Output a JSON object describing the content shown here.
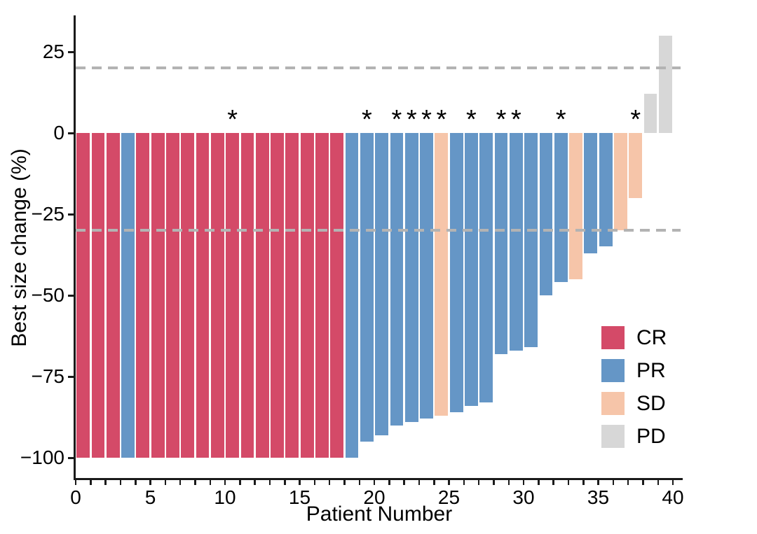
{
  "chart_data": {
    "type": "bar",
    "title": "",
    "xlabel": "Patient Number",
    "ylabel": "Best size change (%)",
    "xlim": [
      0,
      40.7
    ],
    "ylim": [
      -105,
      36
    ],
    "grid": "off",
    "legend_position": "inside-right",
    "x_tick_step": 1,
    "x_tick_label_values": [
      0,
      5,
      10,
      15,
      20,
      25,
      30,
      35,
      40
    ],
    "x_tick_labels": [
      "0",
      "5",
      "10",
      "15",
      "20",
      "25",
      "30",
      "35",
      "40"
    ],
    "y_tick_values": [
      25,
      0,
      -25,
      -50,
      -75,
      -100
    ],
    "y_tick_labels": [
      "25",
      "0",
      "−25",
      "−50",
      "−75",
      "−100"
    ],
    "reference_lines": [
      {
        "y": 20,
        "style": "dashed",
        "color": "#b3b3b3"
      },
      {
        "y": -30,
        "style": "dashed",
        "color": "#b3b3b3"
      }
    ],
    "response_colors": {
      "CR": "#d44a68",
      "PR": "#6596c6",
      "SD": "#f6c5a9",
      "PD": "#d7d7d7"
    },
    "legend": [
      {
        "label": "CR",
        "color": "#d44a68"
      },
      {
        "label": "PR",
        "color": "#6596c6"
      },
      {
        "label": "SD",
        "color": "#f6c5a9"
      },
      {
        "label": "PD",
        "color": "#d7d7d7"
      }
    ],
    "annotation_symbol": "*",
    "patients": [
      {
        "patient": 1,
        "value": -100,
        "response": "CR",
        "star": false
      },
      {
        "patient": 2,
        "value": -100,
        "response": "CR",
        "star": false
      },
      {
        "patient": 3,
        "value": -100,
        "response": "CR",
        "star": false
      },
      {
        "patient": 4,
        "value": -100,
        "response": "PR",
        "star": false
      },
      {
        "patient": 5,
        "value": -100,
        "response": "CR",
        "star": false
      },
      {
        "patient": 6,
        "value": -100,
        "response": "CR",
        "star": false
      },
      {
        "patient": 7,
        "value": -100,
        "response": "CR",
        "star": false
      },
      {
        "patient": 8,
        "value": -100,
        "response": "CR",
        "star": false
      },
      {
        "patient": 9,
        "value": -100,
        "response": "CR",
        "star": false
      },
      {
        "patient": 10,
        "value": -100,
        "response": "CR",
        "star": false
      },
      {
        "patient": 11,
        "value": -100,
        "response": "CR",
        "star": true
      },
      {
        "patient": 12,
        "value": -100,
        "response": "CR",
        "star": false
      },
      {
        "patient": 13,
        "value": -100,
        "response": "CR",
        "star": false
      },
      {
        "patient": 14,
        "value": -100,
        "response": "CR",
        "star": false
      },
      {
        "patient": 15,
        "value": -100,
        "response": "CR",
        "star": false
      },
      {
        "patient": 16,
        "value": -100,
        "response": "CR",
        "star": false
      },
      {
        "patient": 17,
        "value": -100,
        "response": "CR",
        "star": false
      },
      {
        "patient": 18,
        "value": -100,
        "response": "CR",
        "star": false
      },
      {
        "patient": 19,
        "value": -100,
        "response": "PR",
        "star": false
      },
      {
        "patient": 20,
        "value": -95,
        "response": "PR",
        "star": true
      },
      {
        "patient": 21,
        "value": -93,
        "response": "PR",
        "star": false
      },
      {
        "patient": 22,
        "value": -90,
        "response": "PR",
        "star": true
      },
      {
        "patient": 23,
        "value": -89,
        "response": "PR",
        "star": true
      },
      {
        "patient": 24,
        "value": -88,
        "response": "PR",
        "star": true
      },
      {
        "patient": 25,
        "value": -87,
        "response": "SD",
        "star": true
      },
      {
        "patient": 26,
        "value": -86,
        "response": "PR",
        "star": false
      },
      {
        "patient": 27,
        "value": -84,
        "response": "PR",
        "star": true
      },
      {
        "patient": 28,
        "value": -83,
        "response": "PR",
        "star": false
      },
      {
        "patient": 29,
        "value": -68,
        "response": "PR",
        "star": true
      },
      {
        "patient": 30,
        "value": -67,
        "response": "PR",
        "star": true
      },
      {
        "patient": 31,
        "value": -66,
        "response": "PR",
        "star": false
      },
      {
        "patient": 32,
        "value": -50,
        "response": "PR",
        "star": false
      },
      {
        "patient": 33,
        "value": -46,
        "response": "PR",
        "star": true
      },
      {
        "patient": 34,
        "value": -45,
        "response": "SD",
        "star": false
      },
      {
        "patient": 35,
        "value": -37,
        "response": "PR",
        "star": false
      },
      {
        "patient": 36,
        "value": -35,
        "response": "PR",
        "star": false
      },
      {
        "patient": 37,
        "value": -30,
        "response": "SD",
        "star": false
      },
      {
        "patient": 38,
        "value": -20,
        "response": "SD",
        "star": true
      },
      {
        "patient": 39,
        "value": 12,
        "response": "PD",
        "star": false
      },
      {
        "patient": 40,
        "value": 30,
        "response": "PD",
        "star": false
      }
    ]
  }
}
